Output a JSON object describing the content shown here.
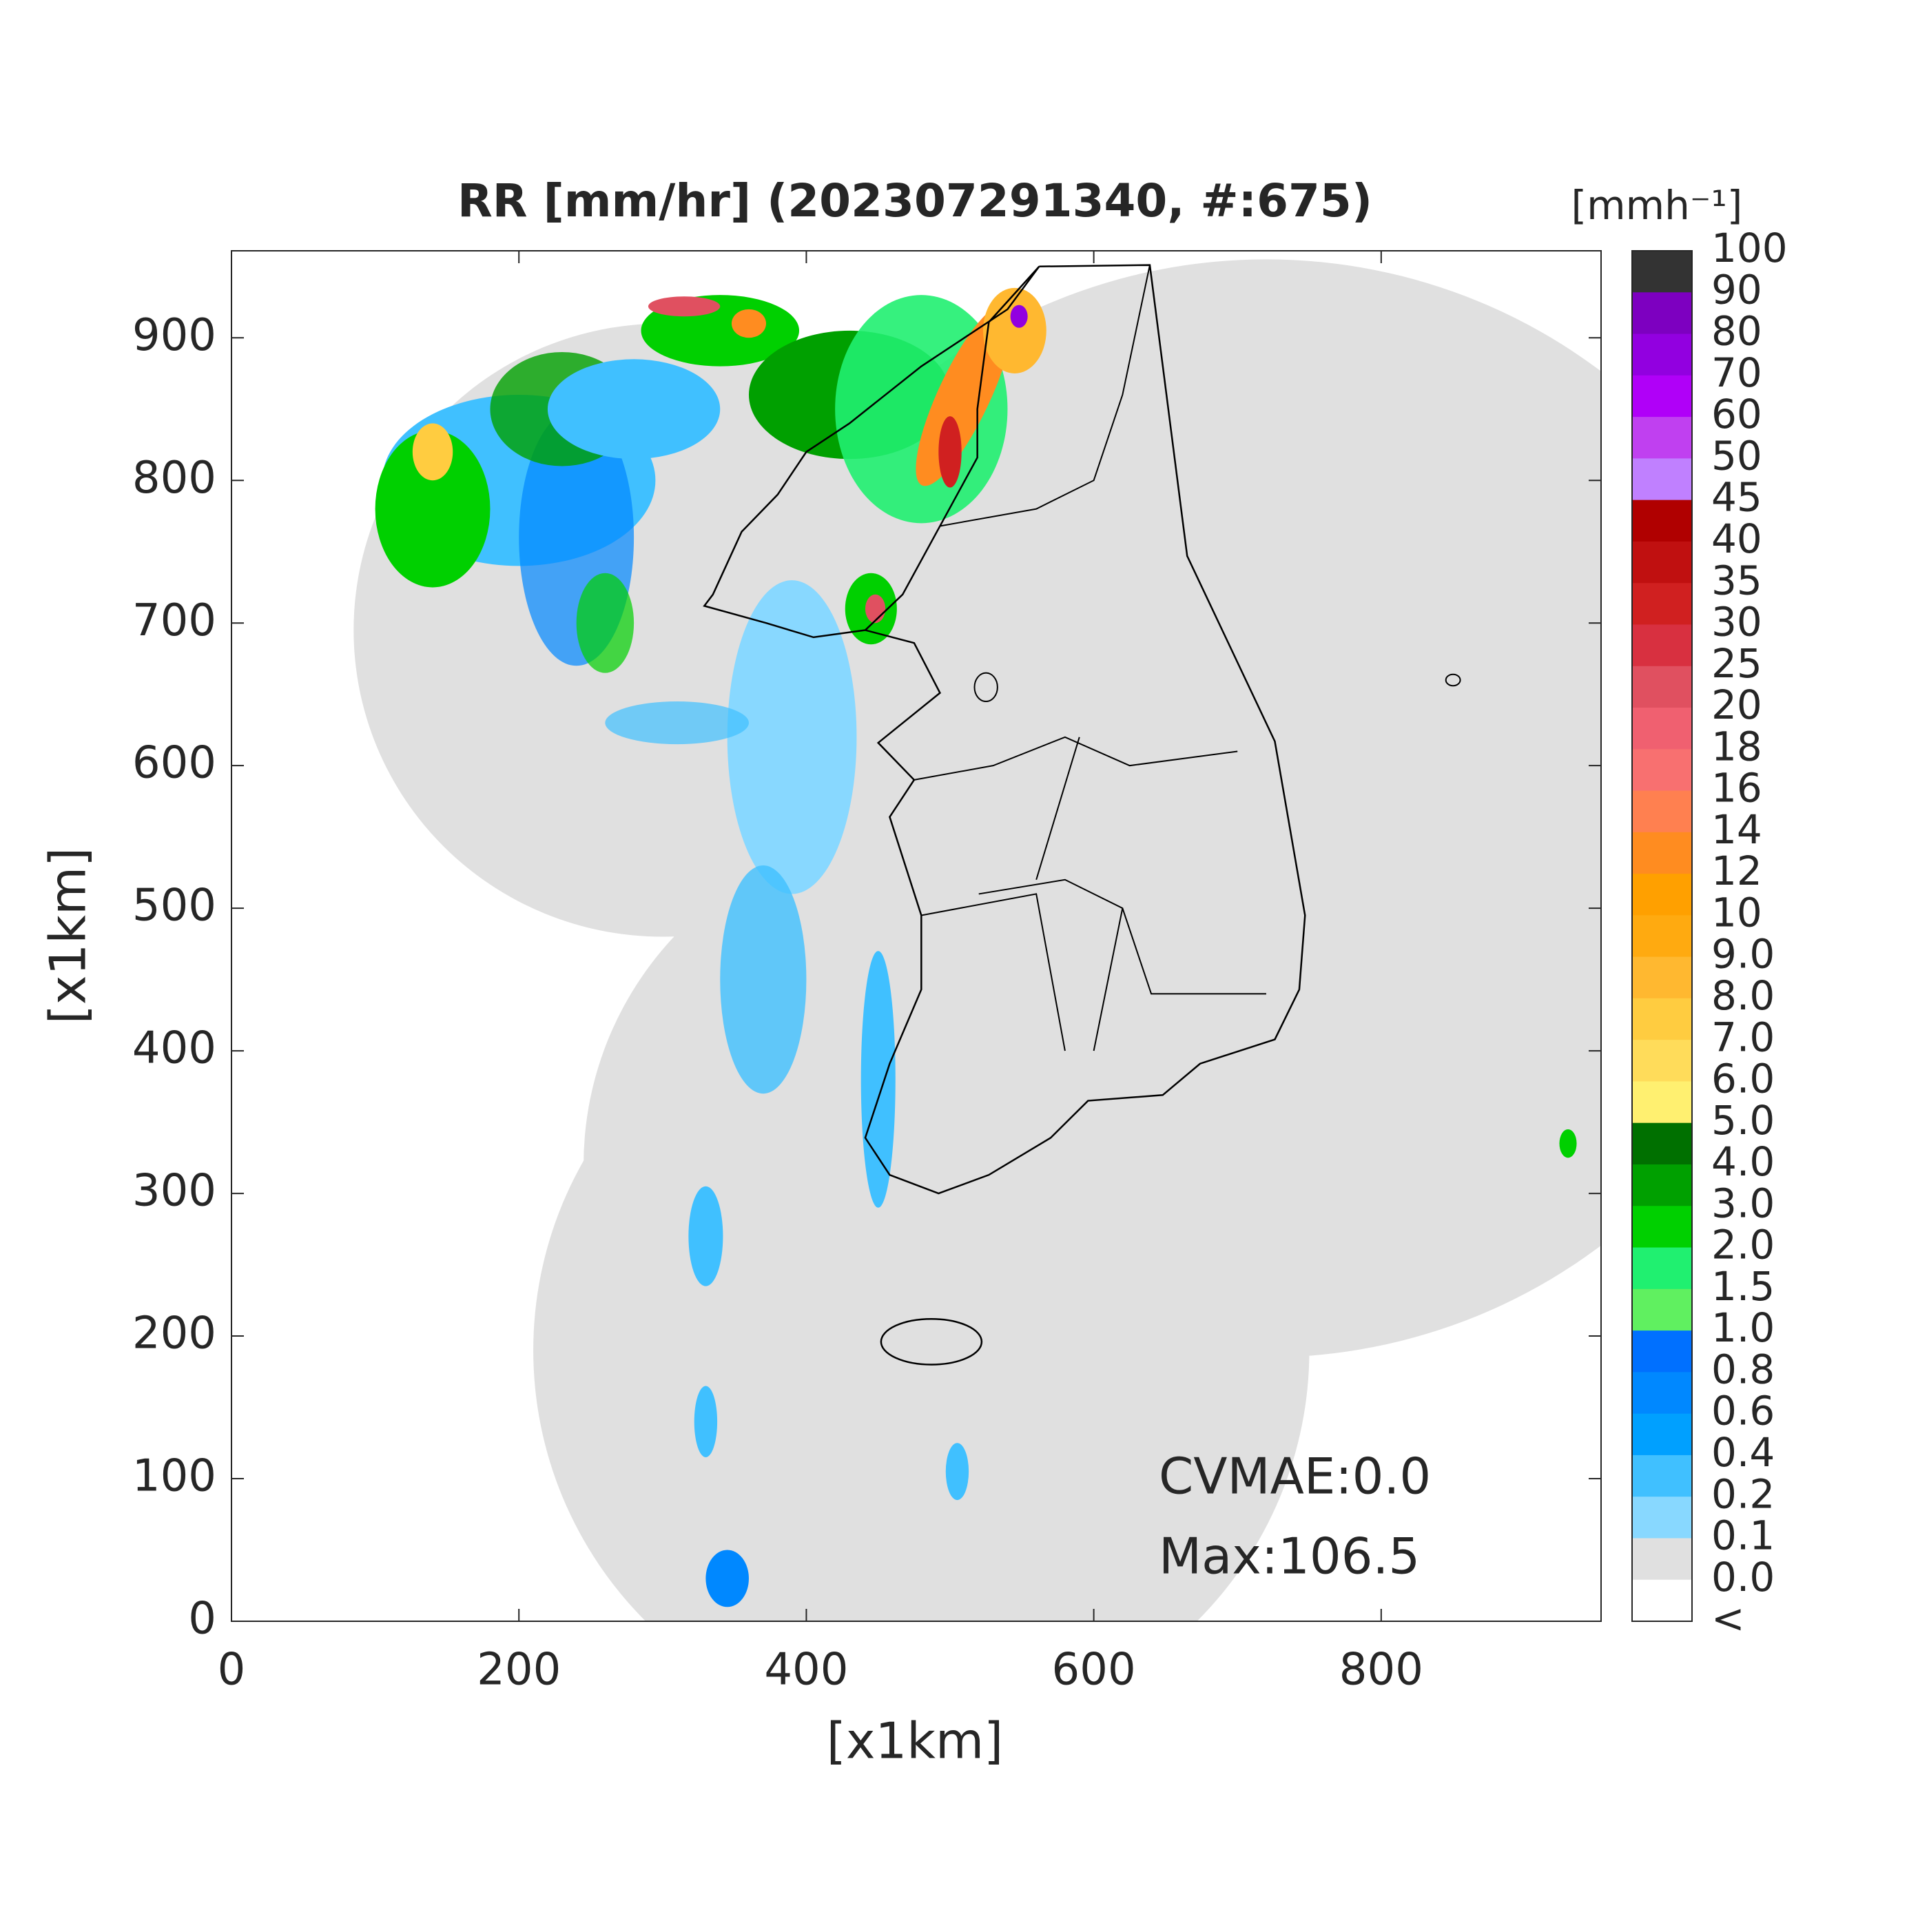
{
  "title": "RR [mm/hr] (202307291340, #:675)",
  "axes": {
    "xlabel": "[x1km]",
    "ylabel": "[x1km]",
    "xlim": [
      0,
      953
    ],
    "ylim": [
      0,
      961
    ],
    "xticks": [
      0,
      200,
      400,
      600,
      800
    ],
    "yticks": [
      0,
      100,
      200,
      300,
      400,
      500,
      600,
      700,
      800,
      900
    ]
  },
  "colorbar": {
    "unit": "[mmh⁻¹]",
    "labels": [
      "100",
      "90",
      "80",
      "70",
      "60",
      "50",
      "45",
      "40",
      "35",
      "30",
      "25",
      "20",
      "18",
      "16",
      "14",
      "12",
      "10",
      "9.0",
      "8.0",
      "7.0",
      "6.0",
      "5.0",
      "4.0",
      "3.0",
      "2.0",
      "1.5",
      "1.0",
      "0.8",
      "0.6",
      "0.4",
      "0.2",
      "0.1",
      "0.0",
      "<"
    ],
    "colors": [
      "#333333",
      "#7d00c0",
      "#9200e0",
      "#b000f8",
      "#c040f0",
      "#c080ff",
      "#b00000",
      "#c01010",
      "#d02020",
      "#d83040",
      "#e05060",
      "#f06070",
      "#f87070",
      "#ff8050",
      "#ff8c20",
      "#ffa000",
      "#ffaa10",
      "#ffb830",
      "#ffcc40",
      "#ffdc5a",
      "#fff070",
      "#007000",
      "#00a000",
      "#00d000",
      "#20f070",
      "#60f060",
      "#0070ff",
      "#0088ff",
      "#00a0ff",
      "#40c0ff",
      "#88d8ff",
      "#e0e0e0",
      "#ffffff"
    ]
  },
  "annotations": [
    "CVMAE:0.0",
    "Max:106.5"
  ]
}
